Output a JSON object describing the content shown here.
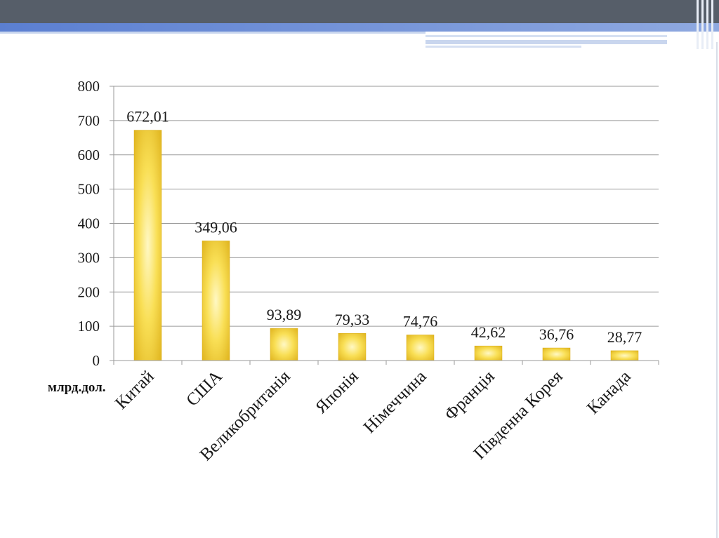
{
  "colors": {
    "header_dark": "#565e69",
    "header_blue": "#5b7fd1",
    "header_light_blue": "#c9d6ee",
    "bar_gold": "#e3b820",
    "bar_light": "#fff6b8",
    "gridline": "#9a9a9a",
    "axis": "#9a9a9a"
  },
  "chart_data": {
    "type": "bar",
    "title": "",
    "xlabel": "",
    "ylabel": "",
    "unit_label": "млрд.дол.",
    "categories": [
      "Китай",
      "США",
      "Великобританія",
      "Японія",
      "Німеччина",
      "Франція",
      "Південна Корея",
      "Канада"
    ],
    "values": [
      672.01,
      349.06,
      93.89,
      79.33,
      74.76,
      42.62,
      36.76,
      28.77
    ],
    "data_labels": [
      "672,01",
      "349,06",
      "93,89",
      "79,33",
      "74,76",
      "42,62",
      "36,76",
      "28,77"
    ],
    "ylim": [
      0,
      800
    ],
    "yticks": [
      0,
      100,
      200,
      300,
      400,
      500,
      600,
      700,
      800
    ],
    "grid": true,
    "legend": "none"
  }
}
